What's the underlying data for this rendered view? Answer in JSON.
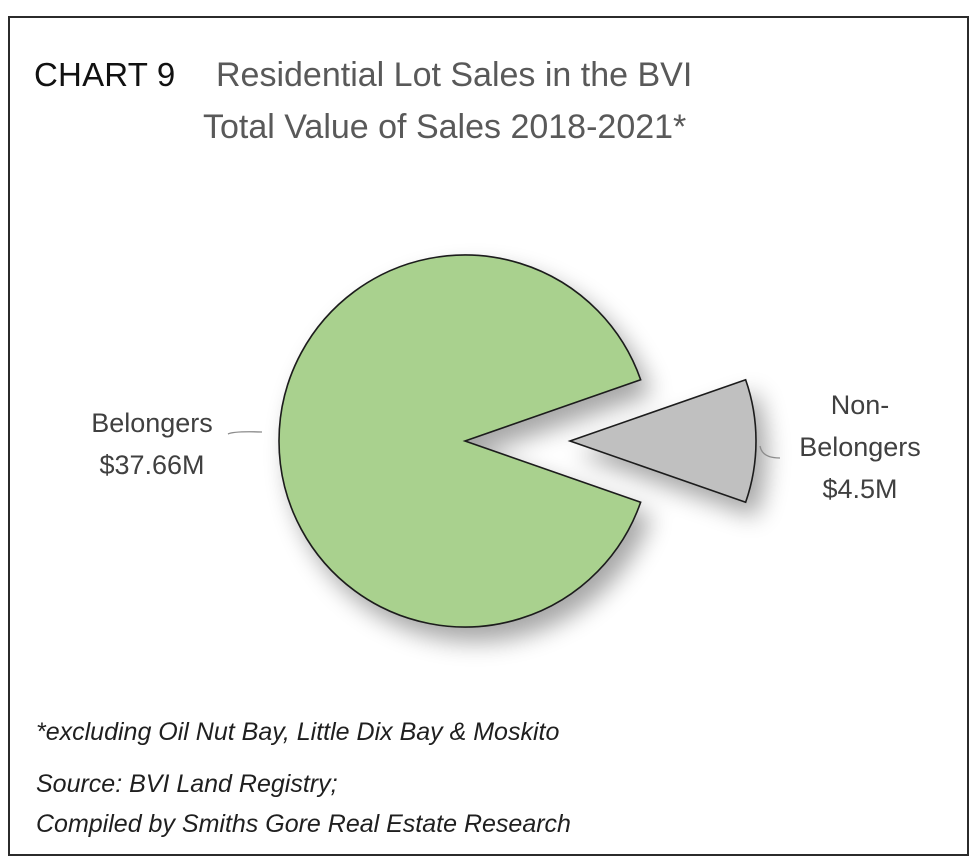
{
  "chart_number": "CHART 9",
  "chart_data": {
    "type": "pie",
    "title": "Residential Lot Sales in the BVI",
    "subtitle": "Total Value of Sales 2018-2021*",
    "slices": [
      {
        "name": "Belongers",
        "label": "$37.66M",
        "value": 37.66,
        "color": "#a9d18e"
      },
      {
        "name": "Non-Belongers",
        "label": "$4.5M",
        "value": 4.5,
        "color": "#c0c0c0",
        "exploded": true
      }
    ]
  },
  "labels": {
    "belongers_line1": "Belongers",
    "belongers_line2": "$37.66M",
    "non_line1": "Non-",
    "non_line2": "Belongers",
    "non_line3": "$4.5M"
  },
  "notes": {
    "footnote": "*excluding Oil Nut Bay, Little Dix Bay & Moskito",
    "source": "Source: BVI Land Registry;",
    "compiled": "Compiled by Smiths Gore Real Estate Research"
  }
}
